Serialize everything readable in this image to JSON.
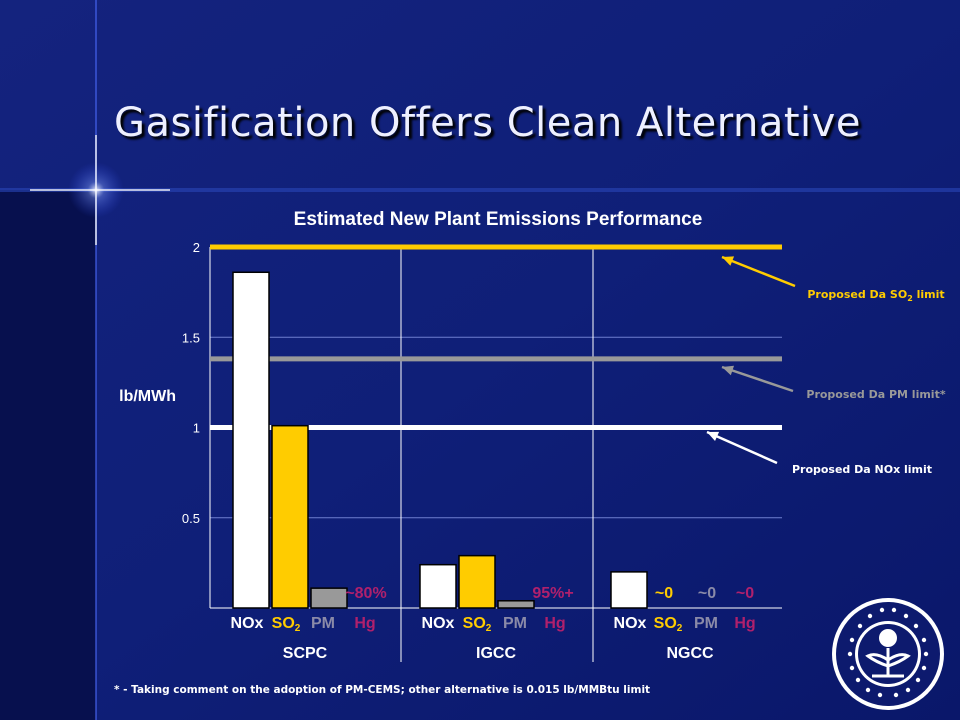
{
  "slide": {
    "title": "Gasification Offers Clean Alternative",
    "footnote": "* - Taking comment on the adoption of PM-CEMS; other alternative is 0.015 lb/MMBtu limit",
    "logo": "epa-seal-icon",
    "colors": {
      "background": "#0d1a6e",
      "sidebar": "#07104e",
      "title_text": "#eef0ff",
      "nox": "#ffffff",
      "so2": "#ffcc00",
      "pm": "#999999",
      "hg": "#b0206c",
      "pm_label": "#8a8aa8"
    }
  },
  "chart_data": {
    "type": "bar",
    "title": "Estimated New Plant Emissions Performance",
    "ylabel": "lb/MWh",
    "ylim": [
      0,
      2
    ],
    "yticks": [
      "0.5",
      "1",
      "1.5",
      "2"
    ],
    "ytick_values": [
      0.5,
      1,
      1.5,
      2
    ],
    "groups": [
      "SCPC",
      "IGCC",
      "NGCC"
    ],
    "series": [
      {
        "name": "NOx",
        "label": "NOx",
        "color": "#ffffff",
        "values": [
          1.86,
          0.24,
          0.2
        ]
      },
      {
        "name": "SO2",
        "label": "SO",
        "sub": "2",
        "color": "#ffcc00",
        "values": [
          1.01,
          0.29,
          null
        ]
      },
      {
        "name": "PM",
        "label": "PM",
        "color": "#999999",
        "values": [
          0.11,
          0.04,
          null
        ]
      },
      {
        "name": "Hg",
        "label": "Hg",
        "color": "#b0206c",
        "values": [
          null,
          null,
          null
        ]
      }
    ],
    "hg_reduction_labels": [
      "~80%",
      "95%+",
      "~0"
    ],
    "ngcc_near_zero_labels": [
      "~0",
      "~0"
    ],
    "limits": [
      {
        "label": "Proposed Da SO",
        "sub": "2",
        "tail": " limit",
        "value": 2.0,
        "color": "#ffcc00"
      },
      {
        "label": "Proposed Da PM  limit*",
        "sub": "",
        "tail": "",
        "value": 1.38,
        "color": "#999999"
      },
      {
        "label": "Proposed Da NOx limit",
        "sub": "",
        "tail": "",
        "value": 1.0,
        "color": "#ffffff"
      }
    ],
    "grid": true
  }
}
